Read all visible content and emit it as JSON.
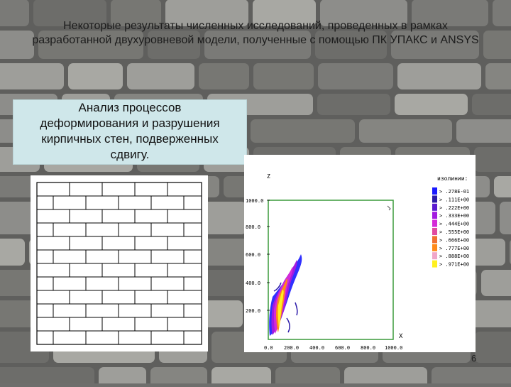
{
  "slide": {
    "title": "Некоторые результаты численных исследований, проведенных в рамках разработанной двухуровневой модели, полученные с помощью ПК УПАКС и ANSYS",
    "callout_lines": [
      "Анализ процессов",
      "деформирования и разрушения",
      "кирпичных стен, подверженных",
      "сдвигу."
    ],
    "page_number": "6"
  },
  "plot": {
    "axis_z": "Z",
    "axis_x": "X",
    "legend_title": "изолинии:",
    "legend": [
      {
        "label": "> .278E-01",
        "color": "#1a1aff"
      },
      {
        "label": "> .111E+00",
        "color": "#2b1aa8"
      },
      {
        "label": "> .222E+00",
        "color": "#5a1ad0"
      },
      {
        "label": "> .333E+00",
        "color": "#a21ae0"
      },
      {
        "label": "> .444E+00",
        "color": "#d42ad8"
      },
      {
        "label": "> .555E+00",
        "color": "#e04aa0"
      },
      {
        "label": "> .666E+00",
        "color": "#f07030"
      },
      {
        "label": "> .777E+00",
        "color": "#ff8a1a"
      },
      {
        "label": "> .888E+00",
        "color": "#f0a6c8"
      },
      {
        "label": "> .971E+00",
        "color": "#fff020"
      }
    ],
    "y_ticks": [
      "1000.0",
      "800.0",
      "600.0",
      "400.0",
      "200.0"
    ],
    "x_ticks": [
      "0.0",
      "200.0",
      "400.0",
      "600.0",
      "800.0",
      "1000.0"
    ]
  },
  "colors": {
    "callout_bg": "#cfe7ea",
    "frame_green": "#3a9a3a"
  }
}
